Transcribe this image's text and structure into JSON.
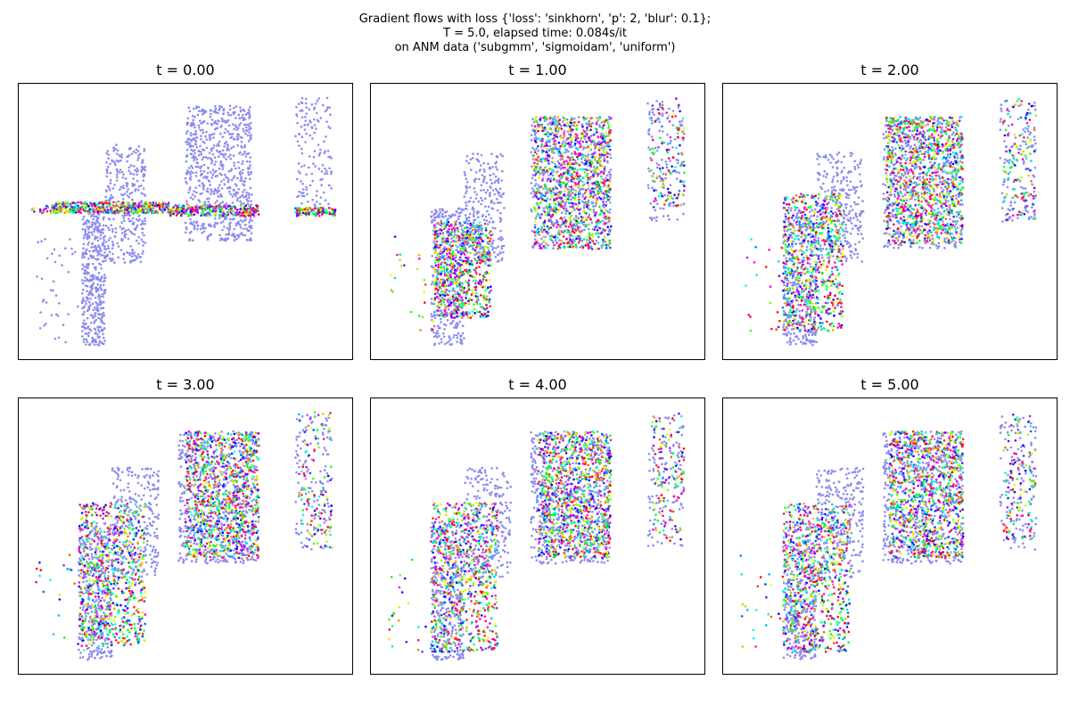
{
  "figure": {
    "suptitle_lines": [
      "Gradient flows with loss {'loss': 'sinkhorn', 'p': 2, 'blur': 0.1};",
      "T = 5.0, elapsed time: 0.084s/it",
      "on ANM data ('subgmm', 'sigmoidam', 'uniform')"
    ]
  },
  "chart_data": [
    {
      "type": "scatter",
      "title": "t = 0.00",
      "xlabel": "",
      "ylabel": "",
      "grid": false,
      "xlim": [
        0,
        1
      ],
      "ylim": [
        0,
        1
      ],
      "target_color": "#8c8cf0",
      "moving_colormap": "hsv",
      "target_clusters": [
        {
          "x": [
            0.19,
            0.26
          ],
          "y": [
            0.05,
            0.55
          ],
          "n": 420
        },
        {
          "x": [
            0.26,
            0.38
          ],
          "y": [
            0.35,
            0.78
          ],
          "n": 320
        },
        {
          "x": [
            0.5,
            0.7
          ],
          "y": [
            0.43,
            0.92
          ],
          "n": 700
        },
        {
          "x": [
            0.83,
            0.94
          ],
          "y": [
            0.54,
            0.95
          ],
          "n": 140
        },
        {
          "x": [
            0.05,
            0.2
          ],
          "y": [
            0.06,
            0.45
          ],
          "n": 40
        }
      ],
      "moving_clusters": [
        {
          "x": [
            0.1,
            0.45
          ],
          "y": [
            0.53,
            0.57
          ],
          "n": 420
        },
        {
          "x": [
            0.45,
            0.72
          ],
          "y": [
            0.52,
            0.56
          ],
          "n": 260
        },
        {
          "x": [
            0.83,
            0.95
          ],
          "y": [
            0.52,
            0.55
          ],
          "n": 120
        },
        {
          "x": [
            0.04,
            0.12
          ],
          "y": [
            0.53,
            0.56
          ],
          "n": 20
        }
      ]
    },
    {
      "type": "scatter",
      "title": "t = 1.00",
      "xlabel": "",
      "ylabel": "",
      "grid": false,
      "xlim": [
        0,
        1
      ],
      "ylim": [
        0,
        1
      ],
      "target_color": "#8c8cf0",
      "moving_colormap": "hsv",
      "target_clusters": [
        {
          "x": [
            0.18,
            0.28
          ],
          "y": [
            0.05,
            0.55
          ],
          "n": 380
        },
        {
          "x": [
            0.28,
            0.4
          ],
          "y": [
            0.35,
            0.75
          ],
          "n": 280
        },
        {
          "x": [
            0.48,
            0.72
          ],
          "y": [
            0.4,
            0.88
          ],
          "n": 650
        },
        {
          "x": [
            0.83,
            0.94
          ],
          "y": [
            0.5,
            0.94
          ],
          "n": 130
        }
      ],
      "moving_clusters": [
        {
          "x": [
            0.19,
            0.36
          ],
          "y": [
            0.15,
            0.5
          ],
          "n": 650
        },
        {
          "x": [
            0.49,
            0.72
          ],
          "y": [
            0.4,
            0.88
          ],
          "n": 900
        },
        {
          "x": [
            0.84,
            0.94
          ],
          "y": [
            0.55,
            0.95
          ],
          "n": 120
        },
        {
          "x": [
            0.05,
            0.2
          ],
          "y": [
            0.1,
            0.45
          ],
          "n": 25
        }
      ]
    },
    {
      "type": "scatter",
      "title": "t = 2.00",
      "xlabel": "",
      "ylabel": "",
      "grid": false,
      "xlim": [
        0,
        1
      ],
      "ylim": [
        0,
        1
      ],
      "target_color": "#8c8cf0",
      "moving_colormap": "hsv",
      "target_clusters": [
        {
          "x": [
            0.18,
            0.28
          ],
          "y": [
            0.05,
            0.55
          ],
          "n": 380
        },
        {
          "x": [
            0.28,
            0.42
          ],
          "y": [
            0.35,
            0.75
          ],
          "n": 280
        },
        {
          "x": [
            0.48,
            0.72
          ],
          "y": [
            0.4,
            0.88
          ],
          "n": 650
        },
        {
          "x": [
            0.83,
            0.94
          ],
          "y": [
            0.5,
            0.94
          ],
          "n": 130
        }
      ],
      "moving_clusters": [
        {
          "x": [
            0.18,
            0.36
          ],
          "y": [
            0.1,
            0.6
          ],
          "n": 700
        },
        {
          "x": [
            0.49,
            0.72
          ],
          "y": [
            0.42,
            0.88
          ],
          "n": 900
        },
        {
          "x": [
            0.84,
            0.94
          ],
          "y": [
            0.5,
            0.95
          ],
          "n": 120
        },
        {
          "x": [
            0.05,
            0.2
          ],
          "y": [
            0.1,
            0.45
          ],
          "n": 25
        }
      ]
    },
    {
      "type": "scatter",
      "title": "t = 3.00",
      "xlabel": "",
      "ylabel": "",
      "grid": false,
      "xlim": [
        0,
        1
      ],
      "ylim": [
        0,
        1
      ],
      "target_color": "#8c8cf0",
      "moving_colormap": "hsv",
      "target_clusters": [
        {
          "x": [
            0.18,
            0.28
          ],
          "y": [
            0.05,
            0.55
          ],
          "n": 380
        },
        {
          "x": [
            0.28,
            0.42
          ],
          "y": [
            0.35,
            0.75
          ],
          "n": 280
        },
        {
          "x": [
            0.48,
            0.72
          ],
          "y": [
            0.4,
            0.88
          ],
          "n": 650
        },
        {
          "x": [
            0.83,
            0.94
          ],
          "y": [
            0.45,
            0.94
          ],
          "n": 130
        }
      ],
      "moving_clusters": [
        {
          "x": [
            0.18,
            0.38
          ],
          "y": [
            0.1,
            0.62
          ],
          "n": 700
        },
        {
          "x": [
            0.5,
            0.72
          ],
          "y": [
            0.42,
            0.88
          ],
          "n": 900
        },
        {
          "x": [
            0.84,
            0.94
          ],
          "y": [
            0.45,
            0.95
          ],
          "n": 120
        },
        {
          "x": [
            0.05,
            0.2
          ],
          "y": [
            0.08,
            0.45
          ],
          "n": 25
        }
      ]
    },
    {
      "type": "scatter",
      "title": "t = 4.00",
      "xlabel": "",
      "ylabel": "",
      "grid": false,
      "xlim": [
        0,
        1
      ],
      "ylim": [
        0,
        1
      ],
      "target_color": "#8c8cf0",
      "moving_colormap": "hsv",
      "target_clusters": [
        {
          "x": [
            0.18,
            0.28
          ],
          "y": [
            0.05,
            0.55
          ],
          "n": 380
        },
        {
          "x": [
            0.28,
            0.42
          ],
          "y": [
            0.35,
            0.75
          ],
          "n": 280
        },
        {
          "x": [
            0.48,
            0.72
          ],
          "y": [
            0.4,
            0.88
          ],
          "n": 650
        },
        {
          "x": [
            0.83,
            0.94
          ],
          "y": [
            0.45,
            0.94
          ],
          "n": 130
        }
      ],
      "moving_clusters": [
        {
          "x": [
            0.18,
            0.38
          ],
          "y": [
            0.08,
            0.62
          ],
          "n": 700
        },
        {
          "x": [
            0.5,
            0.72
          ],
          "y": [
            0.42,
            0.88
          ],
          "n": 900
        },
        {
          "x": [
            0.84,
            0.94
          ],
          "y": [
            0.48,
            0.95
          ],
          "n": 120
        },
        {
          "x": [
            0.05,
            0.2
          ],
          "y": [
            0.08,
            0.45
          ],
          "n": 25
        }
      ]
    },
    {
      "type": "scatter",
      "title": "t = 5.00",
      "xlabel": "",
      "ylabel": "",
      "grid": false,
      "xlim": [
        0,
        1
      ],
      "ylim": [
        0,
        1
      ],
      "target_color": "#8c8cf0",
      "moving_colormap": "hsv",
      "target_clusters": [
        {
          "x": [
            0.18,
            0.28
          ],
          "y": [
            0.05,
            0.55
          ],
          "n": 380
        },
        {
          "x": [
            0.28,
            0.42
          ],
          "y": [
            0.35,
            0.75
          ],
          "n": 280
        },
        {
          "x": [
            0.48,
            0.72
          ],
          "y": [
            0.4,
            0.88
          ],
          "n": 650
        },
        {
          "x": [
            0.83,
            0.94
          ],
          "y": [
            0.45,
            0.94
          ],
          "n": 130
        }
      ],
      "moving_clusters": [
        {
          "x": [
            0.18,
            0.38
          ],
          "y": [
            0.08,
            0.62
          ],
          "n": 700
        },
        {
          "x": [
            0.5,
            0.72
          ],
          "y": [
            0.42,
            0.88
          ],
          "n": 900
        },
        {
          "x": [
            0.84,
            0.94
          ],
          "y": [
            0.48,
            0.95
          ],
          "n": 120
        },
        {
          "x": [
            0.05,
            0.2
          ],
          "y": [
            0.08,
            0.45
          ],
          "n": 25
        }
      ]
    }
  ]
}
